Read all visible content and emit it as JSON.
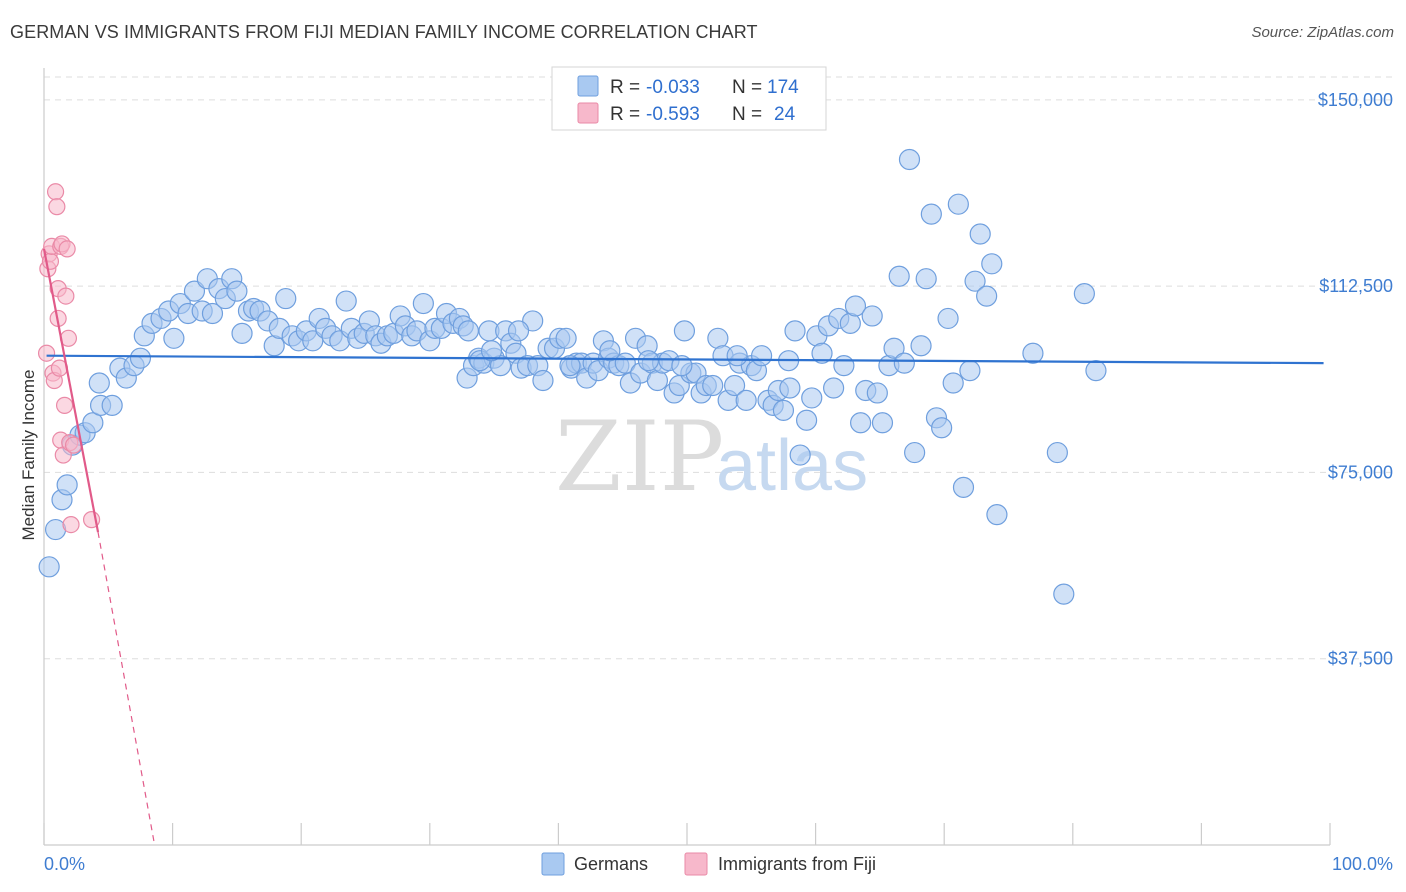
{
  "title": "GERMAN VS IMMIGRANTS FROM FIJI MEDIAN FAMILY INCOME CORRELATION CHART",
  "source": "Source: ZipAtlas.com",
  "watermark": {
    "zip": "ZIP",
    "atlas": "atlas"
  },
  "colors": {
    "german_fill": "#a9c9f1",
    "german_stroke": "#6f9fde",
    "german_line": "#2f73d0",
    "fiji_fill": "#f7b8cb",
    "fiji_stroke": "#ea8aa7",
    "fiji_line": "#e15a89",
    "axis_text": "#3f7dd1",
    "grid": "#dddddd"
  },
  "legend": {
    "rows": [
      {
        "r_label": "R =",
        "r_value": "-0.033",
        "n_label": "N =",
        "n_value": "174",
        "series": "german"
      },
      {
        "r_label": "R =",
        "r_value": "-0.593",
        "n_label": "N =",
        "n_value": "24",
        "series": "fiji"
      }
    ]
  },
  "bottom_legend": [
    {
      "label": "Germans",
      "series": "german"
    },
    {
      "label": "Immigrants from Fiji",
      "series": "fiji"
    }
  ],
  "chart_data": {
    "type": "scatter",
    "title": "GERMAN VS IMMIGRANTS FROM FIJI MEDIAN FAMILY INCOME CORRELATION CHART",
    "xlabel": "",
    "ylabel": "Median Family Income",
    "x_tick_labels": [
      "0.0%",
      "100.0%"
    ],
    "y_ticks": [
      {
        "value": 37500,
        "label": "$37,500"
      },
      {
        "value": 75000,
        "label": "$75,000"
      },
      {
        "value": 112500,
        "label": "$112,500"
      },
      {
        "value": 150000,
        "label": "$150,000"
      }
    ],
    "xlim": [
      0,
      100
    ],
    "ylim": [
      0,
      154000
    ],
    "grid": true,
    "series": [
      {
        "name": "Germans",
        "key": "german",
        "r": -0.033,
        "n": 174,
        "trend": {
          "x0": 0.2,
          "y0": 98500,
          "x1": 99.5,
          "y1": 97000
        },
        "points": [
          {
            "x": 0.4,
            "y": 56000
          },
          {
            "x": 0.9,
            "y": 63500
          },
          {
            "x": 1.4,
            "y": 69500
          },
          {
            "x": 1.8,
            "y": 72500
          },
          {
            "x": 2.2,
            "y": 80500
          },
          {
            "x": 2.8,
            "y": 82500
          },
          {
            "x": 3.2,
            "y": 83000
          },
          {
            "x": 3.8,
            "y": 85000
          },
          {
            "x": 4.4,
            "y": 88500
          },
          {
            "x": 5.3,
            "y": 88500
          },
          {
            "x": 4.3,
            "y": 93000
          },
          {
            "x": 5.9,
            "y": 96000
          },
          {
            "x": 6.4,
            "y": 94000
          },
          {
            "x": 7.0,
            "y": 96500
          },
          {
            "x": 7.5,
            "y": 98000
          },
          {
            "x": 7.8,
            "y": 102500
          },
          {
            "x": 8.4,
            "y": 105000
          },
          {
            "x": 9.1,
            "y": 106000
          },
          {
            "x": 9.7,
            "y": 107500
          },
          {
            "x": 10.1,
            "y": 102000
          },
          {
            "x": 10.6,
            "y": 109000
          },
          {
            "x": 11.2,
            "y": 107000
          },
          {
            "x": 11.7,
            "y": 111500
          },
          {
            "x": 12.3,
            "y": 107500
          },
          {
            "x": 12.7,
            "y": 114000
          },
          {
            "x": 13.1,
            "y": 107000
          },
          {
            "x": 13.6,
            "y": 112000
          },
          {
            "x": 14.1,
            "y": 110000
          },
          {
            "x": 14.6,
            "y": 114000
          },
          {
            "x": 15.0,
            "y": 111500
          },
          {
            "x": 15.4,
            "y": 103000
          },
          {
            "x": 15.9,
            "y": 107500
          },
          {
            "x": 16.3,
            "y": 108000
          },
          {
            "x": 16.8,
            "y": 107500
          },
          {
            "x": 17.4,
            "y": 105500
          },
          {
            "x": 17.9,
            "y": 100500
          },
          {
            "x": 18.3,
            "y": 104000
          },
          {
            "x": 18.8,
            "y": 110000
          },
          {
            "x": 19.3,
            "y": 102500
          },
          {
            "x": 19.8,
            "y": 101500
          },
          {
            "x": 20.4,
            "y": 103500
          },
          {
            "x": 20.9,
            "y": 101500
          },
          {
            "x": 21.4,
            "y": 106000
          },
          {
            "x": 21.9,
            "y": 104000
          },
          {
            "x": 22.4,
            "y": 102500
          },
          {
            "x": 23.0,
            "y": 101500
          },
          {
            "x": 23.5,
            "y": 109500
          },
          {
            "x": 23.9,
            "y": 104000
          },
          {
            "x": 24.4,
            "y": 102000
          },
          {
            "x": 24.9,
            "y": 103000
          },
          {
            "x": 25.3,
            "y": 105500
          },
          {
            "x": 25.8,
            "y": 102500
          },
          {
            "x": 26.2,
            "y": 101000
          },
          {
            "x": 26.7,
            "y": 102500
          },
          {
            "x": 27.2,
            "y": 103000
          },
          {
            "x": 27.7,
            "y": 106500
          },
          {
            "x": 28.1,
            "y": 104500
          },
          {
            "x": 28.6,
            "y": 102500
          },
          {
            "x": 29.0,
            "y": 103500
          },
          {
            "x": 29.5,
            "y": 109000
          },
          {
            "x": 30.0,
            "y": 101500
          },
          {
            "x": 30.4,
            "y": 104000
          },
          {
            "x": 30.9,
            "y": 104000
          },
          {
            "x": 31.3,
            "y": 107000
          },
          {
            "x": 31.8,
            "y": 105000
          },
          {
            "x": 32.3,
            "y": 106000
          },
          {
            "x": 32.6,
            "y": 104500
          },
          {
            "x": 32.9,
            "y": 94000
          },
          {
            "x": 33.0,
            "y": 103500
          },
          {
            "x": 33.4,
            "y": 96500
          },
          {
            "x": 33.8,
            "y": 98000
          },
          {
            "x": 34.2,
            "y": 97000
          },
          {
            "x": 34.6,
            "y": 103500
          },
          {
            "x": 35.0,
            "y": 98000
          },
          {
            "x": 35.5,
            "y": 96500
          },
          {
            "x": 35.9,
            "y": 103500
          },
          {
            "x": 36.3,
            "y": 101000
          },
          {
            "x": 36.7,
            "y": 99000
          },
          {
            "x": 37.1,
            "y": 96000
          },
          {
            "x": 37.6,
            "y": 96500
          },
          {
            "x": 38.0,
            "y": 105500
          },
          {
            "x": 38.4,
            "y": 96500
          },
          {
            "x": 38.8,
            "y": 93500
          },
          {
            "x": 39.2,
            "y": 100000
          },
          {
            "x": 39.7,
            "y": 100000
          },
          {
            "x": 40.1,
            "y": 102000
          },
          {
            "x": 40.6,
            "y": 102000
          },
          {
            "x": 41.0,
            "y": 96000
          },
          {
            "x": 41.4,
            "y": 97000
          },
          {
            "x": 41.8,
            "y": 97000
          },
          {
            "x": 42.2,
            "y": 94000
          },
          {
            "x": 42.7,
            "y": 97000
          },
          {
            "x": 43.1,
            "y": 95500
          },
          {
            "x": 43.5,
            "y": 101500
          },
          {
            "x": 43.9,
            "y": 98000
          },
          {
            "x": 44.3,
            "y": 97000
          },
          {
            "x": 44.7,
            "y": 96500
          },
          {
            "x": 45.2,
            "y": 97000
          },
          {
            "x": 45.6,
            "y": 93000
          },
          {
            "x": 46.0,
            "y": 102000
          },
          {
            "x": 46.4,
            "y": 95000
          },
          {
            "x": 46.9,
            "y": 100500
          },
          {
            "x": 47.3,
            "y": 97000
          },
          {
            "x": 47.7,
            "y": 93500
          },
          {
            "x": 48.1,
            "y": 97000
          },
          {
            "x": 48.6,
            "y": 97500
          },
          {
            "x": 49.0,
            "y": 91000
          },
          {
            "x": 49.4,
            "y": 92500
          },
          {
            "x": 49.8,
            "y": 103500
          },
          {
            "x": 50.3,
            "y": 95000
          },
          {
            "x": 50.7,
            "y": 95000
          },
          {
            "x": 51.1,
            "y": 91000
          },
          {
            "x": 51.5,
            "y": 92500
          },
          {
            "x": 52.0,
            "y": 92500
          },
          {
            "x": 52.4,
            "y": 102000
          },
          {
            "x": 52.8,
            "y": 98500
          },
          {
            "x": 53.2,
            "y": 89500
          },
          {
            "x": 53.7,
            "y": 92500
          },
          {
            "x": 54.1,
            "y": 97000
          },
          {
            "x": 54.6,
            "y": 89500
          },
          {
            "x": 55.0,
            "y": 96500
          },
          {
            "x": 55.4,
            "y": 95500
          },
          {
            "x": 55.8,
            "y": 98500
          },
          {
            "x": 56.3,
            "y": 89500
          },
          {
            "x": 56.7,
            "y": 88500
          },
          {
            "x": 57.1,
            "y": 91500
          },
          {
            "x": 57.5,
            "y": 87500
          },
          {
            "x": 58.0,
            "y": 92000
          },
          {
            "x": 58.4,
            "y": 103500
          },
          {
            "x": 58.8,
            "y": 78500
          },
          {
            "x": 59.3,
            "y": 85500
          },
          {
            "x": 59.7,
            "y": 90000
          },
          {
            "x": 60.1,
            "y": 102500
          },
          {
            "x": 60.5,
            "y": 99000
          },
          {
            "x": 61.0,
            "y": 104500
          },
          {
            "x": 61.4,
            "y": 92000
          },
          {
            "x": 61.8,
            "y": 106000
          },
          {
            "x": 62.2,
            "y": 96500
          },
          {
            "x": 62.7,
            "y": 105000
          },
          {
            "x": 63.1,
            "y": 108500
          },
          {
            "x": 63.5,
            "y": 85000
          },
          {
            "x": 63.9,
            "y": 91500
          },
          {
            "x": 64.4,
            "y": 106500
          },
          {
            "x": 64.8,
            "y": 91000
          },
          {
            "x": 65.2,
            "y": 85000
          },
          {
            "x": 65.7,
            "y": 96500
          },
          {
            "x": 66.1,
            "y": 100000
          },
          {
            "x": 66.5,
            "y": 114500
          },
          {
            "x": 66.9,
            "y": 97000
          },
          {
            "x": 67.3,
            "y": 138000
          },
          {
            "x": 67.7,
            "y": 79000
          },
          {
            "x": 68.2,
            "y": 100500
          },
          {
            "x": 68.6,
            "y": 114000
          },
          {
            "x": 69.0,
            "y": 127000
          },
          {
            "x": 69.4,
            "y": 86000
          },
          {
            "x": 69.8,
            "y": 84000
          },
          {
            "x": 70.3,
            "y": 106000
          },
          {
            "x": 70.7,
            "y": 93000
          },
          {
            "x": 71.1,
            "y": 129000
          },
          {
            "x": 71.5,
            "y": 72000
          },
          {
            "x": 72.0,
            "y": 95500
          },
          {
            "x": 72.4,
            "y": 113500
          },
          {
            "x": 72.8,
            "y": 123000
          },
          {
            "x": 73.3,
            "y": 110500
          },
          {
            "x": 73.7,
            "y": 117000
          },
          {
            "x": 74.1,
            "y": 66500
          },
          {
            "x": 76.9,
            "y": 99000
          },
          {
            "x": 78.8,
            "y": 79000
          },
          {
            "x": 79.3,
            "y": 50500
          },
          {
            "x": 80.9,
            "y": 111000
          },
          {
            "x": 81.8,
            "y": 95500
          },
          {
            "x": 33.9,
            "y": 97500
          },
          {
            "x": 34.8,
            "y": 99500
          },
          {
            "x": 36.9,
            "y": 103500
          },
          {
            "x": 40.9,
            "y": 96500
          },
          {
            "x": 44.0,
            "y": 99500
          },
          {
            "x": 47.0,
            "y": 97500
          },
          {
            "x": 49.6,
            "y": 96500
          },
          {
            "x": 53.9,
            "y": 98500
          },
          {
            "x": 57.9,
            "y": 97500
          }
        ]
      },
      {
        "name": "Immigrants from Fiji",
        "key": "fiji",
        "r": -0.593,
        "n": 24,
        "trend": {
          "x0": 0.0,
          "y0": 120000,
          "x1": 4.2,
          "y1": 63000,
          "dash_x1": 8.6,
          "dash_y1": 0
        },
        "points": [
          {
            "x": 0.2,
            "y": 99000
          },
          {
            "x": 0.3,
            "y": 116000
          },
          {
            "x": 0.4,
            "y": 119000
          },
          {
            "x": 0.5,
            "y": 117500
          },
          {
            "x": 0.6,
            "y": 120500
          },
          {
            "x": 0.7,
            "y": 95000
          },
          {
            "x": 0.8,
            "y": 93500
          },
          {
            "x": 0.9,
            "y": 131500
          },
          {
            "x": 1.0,
            "y": 128500
          },
          {
            "x": 1.1,
            "y": 112000
          },
          {
            "x": 1.1,
            "y": 106000
          },
          {
            "x": 1.2,
            "y": 96000
          },
          {
            "x": 1.3,
            "y": 120500
          },
          {
            "x": 1.3,
            "y": 81500
          },
          {
            "x": 1.4,
            "y": 121000
          },
          {
            "x": 1.5,
            "y": 78500
          },
          {
            "x": 1.6,
            "y": 88500
          },
          {
            "x": 1.7,
            "y": 110500
          },
          {
            "x": 1.8,
            "y": 120000
          },
          {
            "x": 1.9,
            "y": 102000
          },
          {
            "x": 2.0,
            "y": 81000
          },
          {
            "x": 2.1,
            "y": 64500
          },
          {
            "x": 3.7,
            "y": 65500
          },
          {
            "x": 2.3,
            "y": 80500
          }
        ]
      }
    ]
  }
}
